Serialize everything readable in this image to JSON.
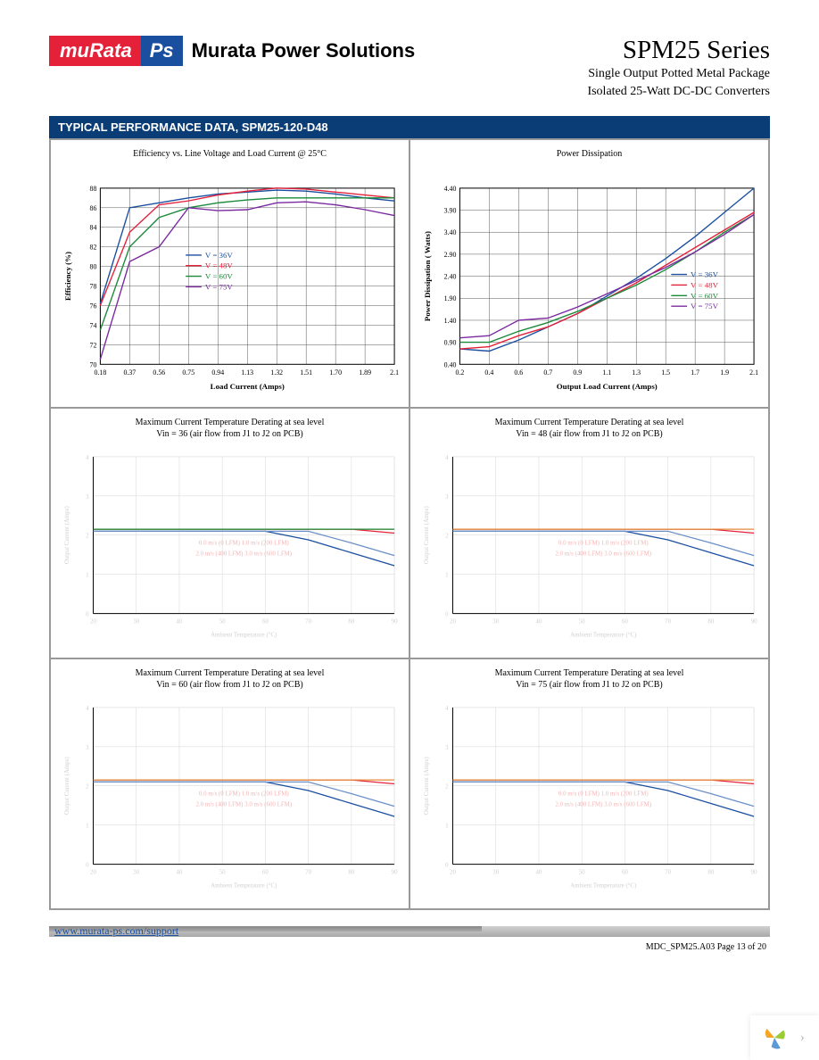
{
  "logo": {
    "murata": "muRata",
    "ps": "Ps",
    "text": "Murata Power Solutions"
  },
  "series_title": "SPM25 Series",
  "subtitle1": "Single Output Potted Metal Package",
  "subtitle2": "Isolated 25-Watt DC-DC Converters",
  "section_header": "TYPICAL PERFORMANCE DATA, SPM25-120-D48",
  "footer_url": "www.murata-ps.com/support",
  "footer_doc": "MDC_SPM25.A03  Page 13 of 20",
  "colors": {
    "blue": "#1a4fa0",
    "red": "#e5213a",
    "green": "#1a8a3a",
    "purple": "#7a2aa0",
    "grid": "#555555",
    "faded_grid": "#dcdcdc",
    "faded_text": "#d0d0d0",
    "faded_red": "#f5b5b5",
    "faded_blue": "#b5c5e5"
  },
  "chart1": {
    "title": "Efficiency vs. Line Voltage and Load Current @ 25°C",
    "xlabel": "Load Current (Amps)",
    "ylabel": "Efficiency (%)",
    "xticks": [
      "0.18",
      "0.37",
      "0.56",
      "0.75",
      "0.94",
      "1.13",
      "1.32",
      "1.51",
      "1.70",
      "1.89",
      "2.1"
    ],
    "yticks": [
      "70",
      "72",
      "74",
      "76",
      "78",
      "80",
      "82",
      "84",
      "86",
      "88"
    ],
    "legend": [
      "V = 36V",
      "V = 48V",
      "V = 60V",
      "V = 75V"
    ],
    "legend_colors": [
      "#1a4fa0",
      "#e5213a",
      "#1a8a3a",
      "#7a2aa0"
    ],
    "series": {
      "36V": [
        76.2,
        86.0,
        86.5,
        87.0,
        87.4,
        87.6,
        87.8,
        87.7,
        87.4,
        87.0,
        86.7
      ],
      "48V": [
        76.0,
        83.5,
        86.3,
        86.7,
        87.3,
        87.7,
        88.0,
        87.9,
        87.6,
        87.3,
        87.0
      ],
      "60V": [
        73.5,
        82.0,
        85.0,
        86.0,
        86.5,
        86.8,
        87.0,
        87.0,
        87.0,
        87.0,
        87.0
      ],
      "75V": [
        70.5,
        80.5,
        82.0,
        86.0,
        85.7,
        85.8,
        86.5,
        86.6,
        86.3,
        85.8,
        85.2
      ]
    }
  },
  "chart2": {
    "title": "Power Dissipation",
    "xlabel": "Output Load Current (Amps)",
    "ylabel": "Power Dissipation ( Watts)",
    "xticks": [
      "0.2",
      "0.4",
      "0.6",
      "0.7",
      "0.9",
      "1.1",
      "1.3",
      "1.5",
      "1.7",
      "1.9",
      "2.1"
    ],
    "yticks": [
      "0.40",
      "0.90",
      "1.40",
      "1.90",
      "2.40",
      "2.90",
      "3.40",
      "3.90",
      "4.40"
    ],
    "legend": [
      "V = 36V",
      "V = 48V",
      "V = 60V",
      "V = 75V"
    ],
    "legend_colors": [
      "#1a4fa0",
      "#e5213a",
      "#1a8a3a",
      "#7a2aa0"
    ],
    "series": {
      "36V": [
        0.75,
        0.7,
        0.95,
        1.25,
        1.55,
        1.95,
        2.35,
        2.8,
        3.3,
        3.85,
        4.4
      ],
      "48V": [
        0.75,
        0.8,
        1.05,
        1.25,
        1.55,
        1.9,
        2.25,
        2.65,
        3.05,
        3.45,
        3.85
      ],
      "60V": [
        0.9,
        0.9,
        1.15,
        1.35,
        1.6,
        1.9,
        2.2,
        2.55,
        2.95,
        3.4,
        3.8
      ],
      "75V": [
        1.0,
        1.05,
        1.4,
        1.45,
        1.7,
        2.0,
        2.3,
        2.6,
        2.95,
        3.35,
        3.8
      ]
    }
  },
  "derating_template": {
    "title": "Maximum Current Temperature Derating at sea level",
    "xlabel": "Ambient Temperature     (°C)",
    "ylabel": "Output Current (Amps)",
    "xticks": [
      "20",
      "30",
      "40",
      "50",
      "60",
      "70",
      "80",
      "90"
    ],
    "yticks": [
      "0",
      "1",
      "2",
      "3",
      "4"
    ],
    "legend": [
      "0.0 m/s (0 LFM)  1.0 m/s (200 LFM)",
      "2.0 m/s (400 LFM)  3.0 m/s (600 LFM)"
    ],
    "series": {
      "blue1": [
        2.1,
        2.1,
        2.1,
        2.1,
        2.1,
        1.88,
        1.55,
        1.22
      ],
      "blue2": [
        2.1,
        2.1,
        2.1,
        2.1,
        2.1,
        2.1,
        1.8,
        1.48
      ],
      "red1": [
        2.15,
        2.15,
        2.15,
        2.15,
        2.15,
        2.15,
        2.15,
        2.05
      ],
      "red2": [
        2.15,
        2.15,
        2.15,
        2.15,
        2.15,
        2.15,
        2.15,
        2.15
      ]
    }
  },
  "derating_subtitles": [
    "Vin = 36 (air flow from J1 to J2 on PCB)",
    "Vin = 48 (air flow from J1 to J2 on PCB)",
    "Vin = 60 (air flow from J1 to J2 on PCB)",
    "Vin = 75 (air flow from J1 to J2 on PCB)"
  ]
}
